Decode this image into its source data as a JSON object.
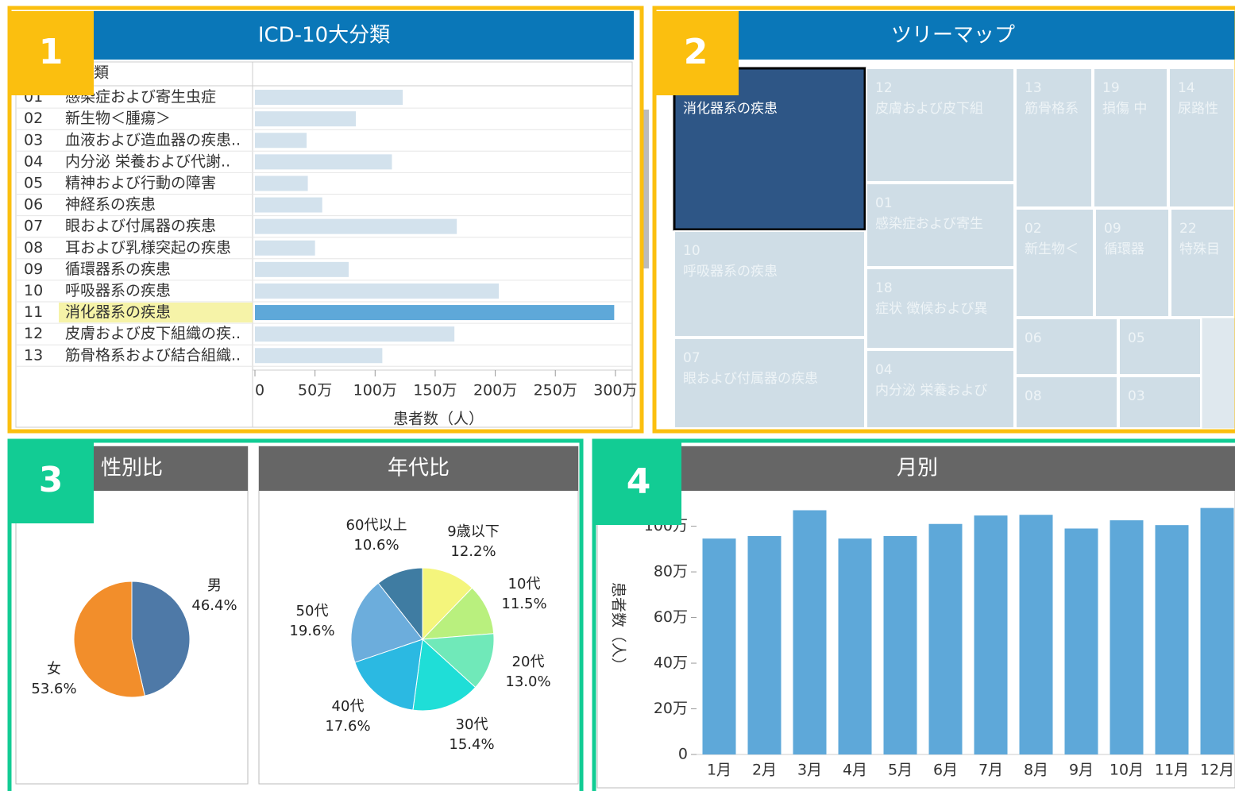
{
  "badges": [
    "1",
    "2",
    "3",
    "4"
  ],
  "chart_data": [
    {
      "type": "hbar",
      "title": "ICD-10大分類",
      "column_header": "大分類",
      "codes": [
        "01",
        "02",
        "03",
        "04",
        "05",
        "06",
        "07",
        "08",
        "09",
        "10",
        "11",
        "12",
        "13"
      ],
      "categories": [
        "感染症および寄生虫症",
        "新生物＜腫瘍＞",
        "血液および造血器の疾患..",
        "内分泌 栄養および代謝..",
        "精神および行動の障害",
        "神経系の疾患",
        "眼および付属器の疾患",
        "耳および乳様突起の疾患",
        "循環器系の疾患",
        "呼吸器系の疾患",
        "消化器系の疾患",
        "皮膚および皮下組織の疾..",
        "筋骨格系および結合組織.."
      ],
      "values": [
        1230000,
        840000,
        430000,
        1140000,
        440000,
        560000,
        1680000,
        500000,
        780000,
        2030000,
        2990000,
        1660000,
        1060000
      ],
      "color": "#d3e2ed",
      "selected_color": "#5ea8d9",
      "selected": "消化器系の疾患",
      "xlim": [
        0,
        3100000
      ],
      "xticks": [
        0,
        {
          "value": 500000,
          "label": "50万"
        },
        {
          "value": 1000000,
          "label": "100万"
        },
        {
          "value": 1500000,
          "label": "150万"
        },
        {
          "value": 2000000,
          "label": "200万"
        },
        {
          "value": 2500000,
          "label": "250万"
        },
        {
          "value": 3000000,
          "label": "300万"
        }
      ],
      "xlabel": "患者数（人）"
    },
    {
      "type": "treemap",
      "title": "ツリーマップ",
      "tiles": [
        {
          "label": "消化器系の疾患"
        },
        {
          "code": "12",
          "label": "皮膚および皮下組"
        },
        {
          "code": "13",
          "label": "筋骨格系"
        },
        {
          "code": "19",
          "label": "損傷 中"
        },
        {
          "code": "14",
          "label": "尿路性"
        },
        {
          "code": "01",
          "label": "感染症および寄生"
        },
        {
          "code": "02",
          "label": "新生物＜"
        },
        {
          "code": "09",
          "label": "循環器"
        },
        {
          "code": "22",
          "label": "特殊目"
        },
        {
          "code": "10",
          "label": "呼吸器系の疾患"
        },
        {
          "code": "18",
          "label": "症状 徴候および異"
        },
        {
          "code": "06"
        },
        {
          "code": "05"
        },
        {
          "code": "07",
          "label": "眼および付属器の疾患"
        },
        {
          "code": "04",
          "label": "内分泌 栄養および"
        },
        {
          "code": "08"
        },
        {
          "code": "03"
        }
      ]
    },
    {
      "type": "pie",
      "title": "性別比",
      "categories": [
        "男",
        "女"
      ],
      "values": [
        46.4,
        53.6
      ],
      "value_labels": [
        "46.4%",
        "53.6%"
      ],
      "colors": [
        "#4e79a7",
        "#f28e2b"
      ]
    },
    {
      "type": "pie",
      "title": "年代比",
      "categories": [
        "9歳以下",
        "10代",
        "20代",
        "30代",
        "40代",
        "50代",
        "60代以上"
      ],
      "values": [
        12.2,
        11.5,
        13.0,
        15.4,
        17.6,
        19.6,
        10.6
      ],
      "value_labels": [
        "12.2%",
        "11.5%",
        "13.0%",
        "15.4%",
        "17.6%",
        "19.6%",
        "10.6%"
      ],
      "colors": [
        "#f4f57c",
        "#b9f07e",
        "#70e9b9",
        "#1fded7",
        "#2bb9e2",
        "#6caddc",
        "#3f7ca2"
      ]
    },
    {
      "type": "bar",
      "title": "月別",
      "categories": [
        "1月",
        "2月",
        "3月",
        "4月",
        "5月",
        "6月",
        "7月",
        "8月",
        "9月",
        "10月",
        "11月",
        "12月"
      ],
      "values": [
        946000,
        957000,
        1070000,
        946000,
        957000,
        1010000,
        1047000,
        1050000,
        990000,
        1026000,
        1005000,
        1080000
      ],
      "color": "#5ea8d9",
      "ylim": [
        0,
        1110000
      ],
      "yticks": [
        0,
        {
          "value": 200000,
          "label": "20万"
        },
        {
          "value": 400000,
          "label": "40万"
        },
        {
          "value": 600000,
          "label": "60万"
        },
        {
          "value": 800000,
          "label": "80万"
        },
        {
          "value": 1000000,
          "label": "100万"
        }
      ],
      "ylabel": "患者数（人）"
    }
  ]
}
